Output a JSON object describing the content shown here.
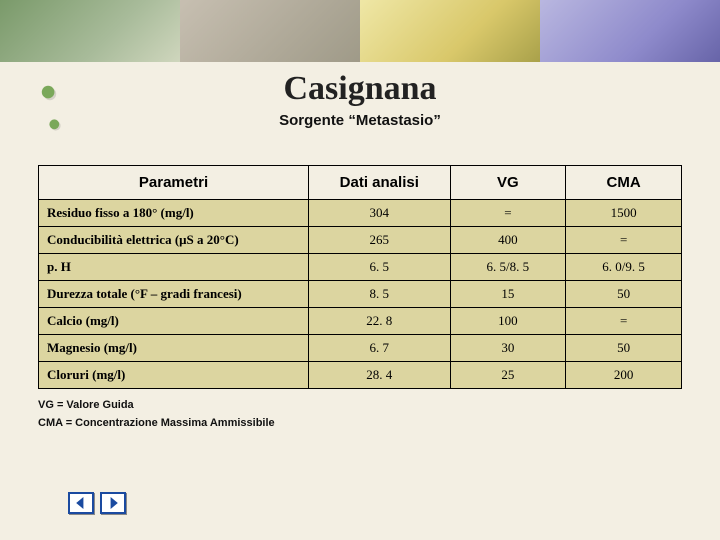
{
  "title": "Casignana",
  "subtitle": "Sorgente “Metastasio”",
  "table": {
    "headers": [
      "Parametri",
      "Dati analisi",
      "VG",
      "CMA"
    ],
    "rows": [
      {
        "param": "Residuo fisso a 180° (mg/l)",
        "dati": "304",
        "vg": "=",
        "cma": "1500"
      },
      {
        "param": "Conducibilità elettrica (μS a 20°C)",
        "dati": "265",
        "vg": "400",
        "cma": "="
      },
      {
        "param": "p. H",
        "dati": "6. 5",
        "vg": "6. 5/8. 5",
        "cma": "6. 0/9. 5"
      },
      {
        "param": "Durezza totale (°F – gradi francesi)",
        "dati": "8. 5",
        "vg": "15",
        "cma": "50"
      },
      {
        "param": "Calcio (mg/l)",
        "dati": "22. 8",
        "vg": "100",
        "cma": "="
      },
      {
        "param": "Magnesio (mg/l)",
        "dati": "6. 7",
        "vg": "30",
        "cma": "50"
      },
      {
        "param": "Cloruri (mg/l)",
        "dati": "28. 4",
        "vg": "25",
        "cma": "200"
      }
    ],
    "header_bg": "#f3efe3",
    "row_bg": "#dcd5a0",
    "border_color": "#000000"
  },
  "legend": {
    "line1": "VG = Valore Guida",
    "line2": "CMA = Concentrazione Massima Ammissibile"
  },
  "nav": {
    "prev_icon": "nav-prev-icon",
    "next_icon": "nav-next-icon"
  },
  "colors": {
    "page_bg": "#f3efe3",
    "banner": [
      "#7a9a6a",
      "#c7bfb1",
      "#d9c86a",
      "#8e8acb"
    ],
    "nav_border": "#1a4aa0"
  },
  "fonts": {
    "title_family": "Garamond",
    "title_size_pt": 26,
    "subtitle_family": "Arial",
    "subtitle_size_pt": 11,
    "header_family": "Verdana",
    "header_size_pt": 11,
    "cell_family": "Times New Roman",
    "cell_size_pt": 10,
    "legend_size_pt": 8
  }
}
